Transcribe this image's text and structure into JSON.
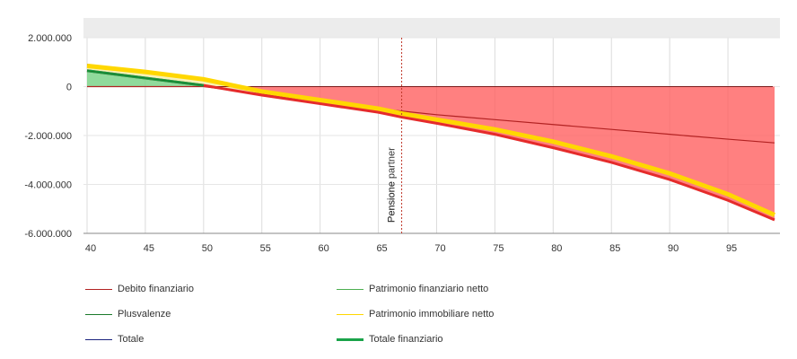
{
  "chart_data": {
    "type": "area",
    "x_range": [
      40,
      99
    ],
    "y_range": [
      -6000000,
      2000000
    ],
    "x_ticks": [
      40,
      45,
      50,
      55,
      60,
      65,
      70,
      75,
      80,
      85,
      90,
      95
    ],
    "y_ticks": [
      2000000,
      0,
      -2000000,
      -4000000,
      -6000000
    ],
    "y_tick_labels": [
      "2.000.000",
      "0",
      "-2.000.000",
      "-4.000.000",
      "-6.000.000"
    ],
    "vertical_marker": {
      "x": 67,
      "labels": [
        "Pensione",
        "Pensione partner"
      ],
      "color": "#c0392b"
    },
    "series": [
      {
        "name": "Debito finanziario",
        "color": "#b22222",
        "x": [
          40,
          50,
          55,
          60,
          65,
          67,
          70,
          75,
          80,
          85,
          90,
          95,
          99
        ],
        "y": [
          0,
          0,
          -300000,
          -600000,
          -900000,
          -1000000,
          -1150000,
          -1350000,
          -1550000,
          -1750000,
          -1950000,
          -2150000,
          -2300000
        ]
      },
      {
        "name": "Patrimonio finanziario netto",
        "color": "#4caf50",
        "x": [
          40,
          50
        ],
        "y": [
          650000,
          50000
        ]
      },
      {
        "name": "Plusvalenze",
        "color": "#1b7a2a",
        "x": [
          40,
          50
        ],
        "y": [
          650000,
          50000
        ]
      },
      {
        "name": "Patrimonio immobiliare netto",
        "color": "#ffd700",
        "x": [
          40,
          45,
          50,
          55,
          60,
          65,
          67,
          70,
          75,
          80,
          85,
          90,
          95,
          99
        ],
        "y": [
          850000,
          600000,
          300000,
          -200000,
          -550000,
          -900000,
          -1100000,
          -1350000,
          -1750000,
          -2250000,
          -2850000,
          -3550000,
          -4400000,
          -5250000
        ]
      },
      {
        "name": "Totale",
        "color": "#1a237e",
        "x": [
          40,
          45,
          50,
          55,
          60,
          65,
          67,
          70,
          75,
          80,
          85,
          90,
          95,
          99
        ],
        "y": [
          900000,
          620000,
          320000,
          -150000,
          -500000,
          -850000,
          -1050000,
          -1300000,
          -1700000,
          -2200000,
          -2800000,
          -3500000,
          -4350000,
          -5200000
        ]
      },
      {
        "name": "Totale finanziario",
        "color": "#e52b2b",
        "x": [
          40,
          45,
          50,
          55,
          60,
          65,
          67,
          70,
          75,
          80,
          85,
          90,
          95,
          99
        ],
        "y": [
          650000,
          350000,
          50000,
          -350000,
          -700000,
          -1050000,
          -1250000,
          -1500000,
          -1950000,
          -2500000,
          -3100000,
          -3800000,
          -4650000,
          -5450000
        ]
      }
    ],
    "grid": true,
    "legend_position": "bottom"
  },
  "legend": [
    {
      "label": "Debito finanziario",
      "color": "#b22222",
      "width": 1
    },
    {
      "label": "Patrimonio finanziario netto",
      "color": "#4caf50",
      "width": 1
    },
    {
      "label": "Plusvalenze",
      "color": "#1b7a2a",
      "width": 1
    },
    {
      "label": "Patrimonio immobiliare netto",
      "color": "#ffd700",
      "width": 1
    },
    {
      "label": "Totale",
      "color": "#1a237e",
      "width": 1
    },
    {
      "label": "Totale finanziario",
      "color": "#1aa34a",
      "width": 3
    }
  ]
}
